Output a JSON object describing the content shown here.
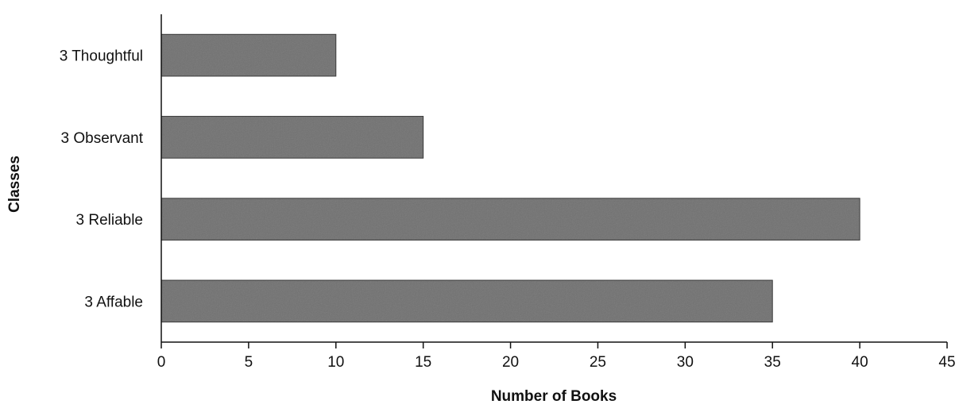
{
  "chart_data": {
    "type": "bar",
    "orientation": "horizontal",
    "categories": [
      "3 Thoughtful",
      "3 Observant",
      "3 Reliable",
      "3 Affable"
    ],
    "values": [
      10,
      15,
      40,
      35
    ],
    "xlabel": "Number of Books",
    "ylabel": "Classes",
    "xlim": [
      0,
      45
    ],
    "xticks": [
      "0",
      "5",
      "10",
      "15",
      "20",
      "25",
      "30",
      "35",
      "40",
      "45"
    ],
    "grid": false,
    "legend": "none",
    "bar_color": "#6f6f6f"
  }
}
